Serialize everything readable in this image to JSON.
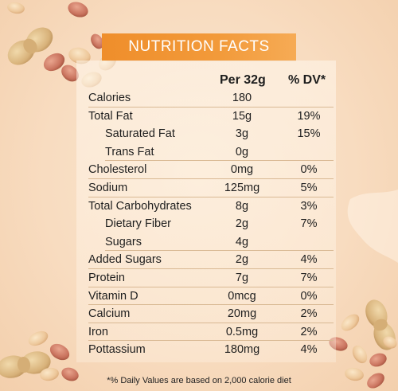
{
  "title": "NUTRITION FACTS",
  "columns": {
    "per": "Per 32g",
    "dv": "% DV*"
  },
  "rows": [
    {
      "label": "Calories",
      "amount": "180",
      "dv": "",
      "sub": false
    },
    {
      "label": "Total Fat",
      "amount": "15g",
      "dv": "19%",
      "sub": false
    },
    {
      "label": "Saturated Fat",
      "amount": "3g",
      "dv": "15%",
      "sub": true
    },
    {
      "label": "Trans Fat",
      "amount": "0g",
      "dv": "",
      "sub": true
    },
    {
      "label": "Cholesterol",
      "amount": "0mg",
      "dv": "0%",
      "sub": false
    },
    {
      "label": "Sodium",
      "amount": "125mg",
      "dv": "5%",
      "sub": false
    },
    {
      "label": "Total Carbohydrates",
      "amount": "8g",
      "dv": "3%",
      "sub": false
    },
    {
      "label": "Dietary Fiber",
      "amount": "2g",
      "dv": "7%",
      "sub": true
    },
    {
      "label": "Sugars",
      "amount": "4g",
      "dv": "",
      "sub": true
    },
    {
      "label": "Added Sugars",
      "amount": "2g",
      "dv": "4%",
      "sub": false
    },
    {
      "label": "Protein",
      "amount": "7g",
      "dv": "7%",
      "sub": false
    },
    {
      "label": "Vitamin D",
      "amount": "0mcg",
      "dv": "0%",
      "sub": false
    },
    {
      "label": "Calcium",
      "amount": "20mg",
      "dv": "2%",
      "sub": false
    },
    {
      "label": "Iron",
      "amount": "0.5mg",
      "dv": "2%",
      "sub": false
    },
    {
      "label": "Pottassium",
      "amount": "180mg",
      "dv": "4%",
      "sub": false
    }
  ],
  "footnote": "*% Daily Values are based on 2,000 calorie diet",
  "colors": {
    "banner": "#ef8e2b",
    "background": "#f8dcc0",
    "rule": "#d9b994"
  },
  "decorations": [
    "peanut-shell-icon",
    "peanut-kernel-icon"
  ]
}
